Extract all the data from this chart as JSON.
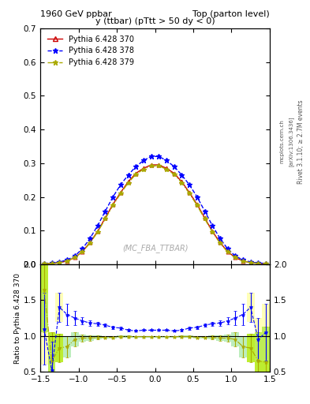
{
  "title_left": "1960 GeV ppbar",
  "title_right": "Top (parton level)",
  "subtitle": "y (ttbar) (pTtt > 50 dy < 0)",
  "watermark": "(MC_FBA_TTBAR)",
  "right_label": "Rivet 3.1.10; ≥ 2.7M events",
  "arxiv_label": "[arXiv:1306.3436]",
  "mcplots_label": "mcplots.cern.ch",
  "ylabel_ratio": "Ratio to Pythia 6.428 370",
  "xlim": [
    -1.5,
    1.5
  ],
  "ylim_main": [
    0.0,
    0.7
  ],
  "ylim_ratio": [
    0.5,
    2.0
  ],
  "legend_entries": [
    "Pythia 6.428 370",
    "Pythia 6.428 378",
    "Pythia 6.428 379"
  ],
  "colors": [
    "#cc0000",
    "#0000ff",
    "#aaaa00"
  ],
  "background_color": "#ffffff",
  "x_values": [
    -1.45,
    -1.35,
    -1.25,
    -1.15,
    -1.05,
    -0.95,
    -0.85,
    -0.75,
    -0.65,
    -0.55,
    -0.45,
    -0.35,
    -0.25,
    -0.15,
    -0.05,
    0.05,
    0.15,
    0.25,
    0.35,
    0.45,
    0.55,
    0.65,
    0.75,
    0.85,
    0.95,
    1.05,
    1.15,
    1.25,
    1.35,
    1.45
  ],
  "y_ref": [
    0.002,
    0.003,
    0.005,
    0.01,
    0.02,
    0.038,
    0.065,
    0.098,
    0.138,
    0.178,
    0.213,
    0.245,
    0.27,
    0.285,
    0.295,
    0.295,
    0.285,
    0.27,
    0.245,
    0.213,
    0.178,
    0.138,
    0.098,
    0.065,
    0.038,
    0.02,
    0.01,
    0.005,
    0.003,
    0.002
  ],
  "y_378": [
    0.003,
    0.004,
    0.007,
    0.013,
    0.025,
    0.046,
    0.077,
    0.115,
    0.158,
    0.2,
    0.236,
    0.265,
    0.29,
    0.308,
    0.32,
    0.32,
    0.308,
    0.29,
    0.265,
    0.236,
    0.2,
    0.158,
    0.115,
    0.077,
    0.046,
    0.025,
    0.013,
    0.007,
    0.004,
    0.003
  ],
  "y_379": [
    0.002,
    0.003,
    0.005,
    0.01,
    0.02,
    0.037,
    0.063,
    0.096,
    0.135,
    0.175,
    0.21,
    0.242,
    0.267,
    0.282,
    0.292,
    0.292,
    0.282,
    0.267,
    0.242,
    0.21,
    0.175,
    0.135,
    0.096,
    0.063,
    0.037,
    0.02,
    0.01,
    0.005,
    0.003,
    0.002
  ],
  "ratio_378": [
    1.1,
    0.52,
    1.4,
    1.3,
    1.25,
    1.21,
    1.18,
    1.17,
    1.15,
    1.12,
    1.11,
    1.08,
    1.07,
    1.08,
    1.08,
    1.08,
    1.08,
    1.07,
    1.08,
    1.11,
    1.12,
    1.15,
    1.17,
    1.18,
    1.21,
    1.25,
    1.3,
    1.4,
    0.95,
    1.05
  ],
  "ratio_379": [
    1.65,
    0.65,
    0.83,
    0.85,
    0.95,
    0.97,
    0.97,
    0.98,
    0.98,
    0.98,
    0.99,
    0.99,
    0.99,
    0.99,
    0.99,
    0.99,
    0.99,
    0.99,
    0.99,
    0.99,
    0.98,
    0.98,
    0.98,
    0.97,
    0.97,
    0.95,
    0.85,
    0.83,
    0.65,
    0.63
  ],
  "ratio_err_378": [
    0.5,
    0.4,
    0.2,
    0.15,
    0.1,
    0.05,
    0.04,
    0.03,
    0.02,
    0.02,
    0.02,
    0.02,
    0.01,
    0.01,
    0.01,
    0.01,
    0.01,
    0.01,
    0.02,
    0.02,
    0.02,
    0.02,
    0.03,
    0.04,
    0.05,
    0.1,
    0.15,
    0.2,
    0.3,
    0.4
  ],
  "ratio_err_379": [
    0.6,
    0.4,
    0.2,
    0.15,
    0.1,
    0.05,
    0.04,
    0.03,
    0.02,
    0.02,
    0.02,
    0.02,
    0.01,
    0.01,
    0.01,
    0.01,
    0.01,
    0.01,
    0.02,
    0.02,
    0.02,
    0.02,
    0.03,
    0.04,
    0.05,
    0.1,
    0.15,
    0.2,
    0.4,
    0.5
  ],
  "yticks_main": [
    0.0,
    0.1,
    0.2,
    0.3,
    0.4,
    0.5,
    0.6,
    0.7
  ],
  "yticks_ratio": [
    0.5,
    1.0,
    1.5,
    2.0
  ],
  "xticks": [
    -1.5,
    -1.0,
    -0.5,
    0.0,
    0.5,
    1.0,
    1.5
  ]
}
